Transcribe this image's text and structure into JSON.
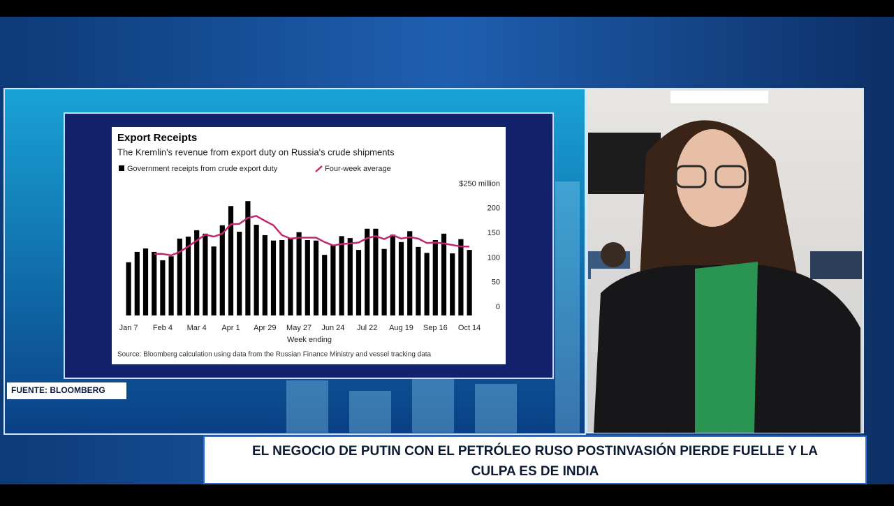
{
  "chart_data": {
    "type": "bar_line",
    "title": "Export Receipts",
    "subtitle": "The Kremlin's revenue from export duty on Russia's crude shipments",
    "x_label": "Week ending",
    "source": "Source: Bloomberg calculation using data from the Russian Finance Ministry and vessel tracking data",
    "categories": [
      "Jan 7",
      null,
      null,
      null,
      "Feb 4",
      null,
      null,
      null,
      "Mar 4",
      null,
      null,
      null,
      "Apr 1",
      null,
      null,
      null,
      "Apr 29",
      null,
      null,
      null,
      "May 27",
      null,
      null,
      null,
      "Jun 24",
      null,
      null,
      null,
      "Jul 22",
      null,
      null,
      null,
      "Aug 19",
      null,
      null,
      null,
      "Sep 16",
      null,
      null,
      null,
      "Oct 14"
    ],
    "series": [
      {
        "name": "Government receipts from crude export duty",
        "type": "bar",
        "color": "#000000",
        "values": [
          108,
          129,
          136,
          129,
          112,
          120,
          156,
          160,
          173,
          166,
          140,
          183,
          222,
          170,
          232,
          184,
          163,
          152,
          153,
          157,
          169,
          153,
          152,
          123,
          143,
          161,
          157,
          133,
          176,
          176,
          135,
          164,
          149,
          171,
          139,
          127,
          153,
          166,
          126,
          155,
          133
        ]
      },
      {
        "name": "Four-week average",
        "type": "line",
        "color": "#c2266e",
        "values": [
          null,
          null,
          null,
          125,
          125,
          122,
          129,
          140,
          152,
          164,
          160,
          166,
          185,
          186,
          198,
          202,
          192,
          183,
          163,
          156,
          158,
          158,
          158,
          149,
          142,
          145,
          146,
          148,
          157,
          161,
          155,
          163,
          156,
          159,
          156,
          147,
          148,
          146,
          143,
          140,
          140
        ]
      }
    ],
    "ylim": [
      0,
      250
    ],
    "yticks": [
      0,
      50,
      100,
      150,
      200,
      {
        "value": 250,
        "label": "$250 million"
      }
    ],
    "grid": false
  },
  "overlay": {
    "source_tag": "FUENTE: BLOOMBERG",
    "headline": [
      "EL NEGOCIO DE PUTIN CON EL PETRÓLEO RUSO POSTINVASIÓN PIERDE FUELLE Y LA",
      "CULPA ES DE INDIA"
    ]
  }
}
